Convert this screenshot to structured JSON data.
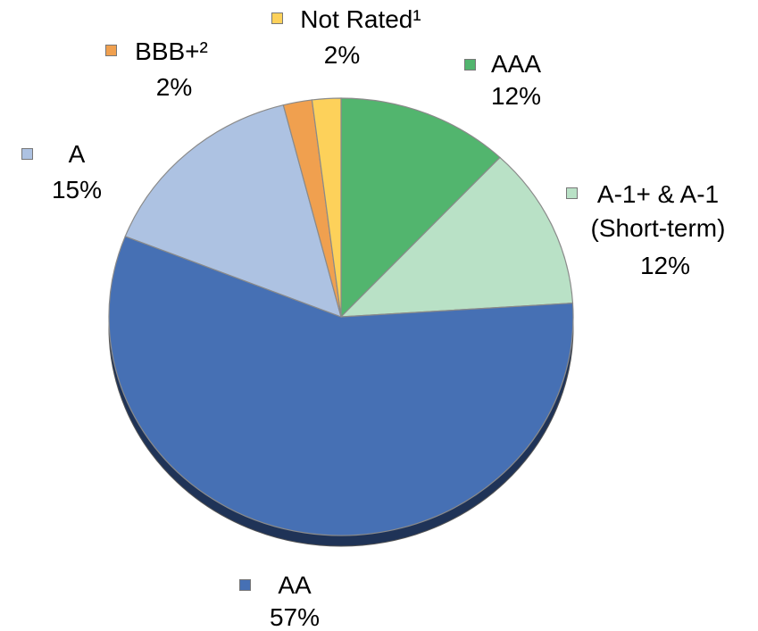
{
  "chart_data": {
    "type": "pie",
    "categories": [
      "AAA",
      "A-1+ & A-1 (Short-term)",
      "AA",
      "A",
      "BBB+²",
      "Not Rated¹"
    ],
    "values": [
      12,
      12,
      57,
      15,
      2,
      2
    ],
    "value_labels": [
      "12%",
      "12%",
      "57%",
      "15%",
      "2%",
      "2%"
    ],
    "colors": [
      "#52b56e",
      "#b9e1c6",
      "#4670b4",
      "#adc2e2",
      "#f0a04f",
      "#fdd15a"
    ]
  }
}
